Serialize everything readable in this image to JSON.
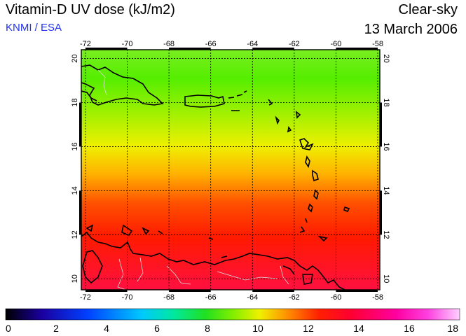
{
  "header": {
    "title": "Vitamin-D UV dose (kJ/m2)",
    "credit": "KNMI / ESA",
    "condition": "Clear-sky",
    "date": "13 March 2006"
  },
  "map": {
    "lon_ticks": [
      "-72",
      "-70",
      "-68",
      "-66",
      "-64",
      "-62",
      "-60",
      "-58"
    ],
    "lat_ticks": [
      "10",
      "12",
      "14",
      "16",
      "18",
      "20"
    ],
    "lon_range": [
      -72.2,
      -57.9
    ],
    "lat_range": [
      9.5,
      20.4
    ],
    "colors": {
      "north": "#55ee00",
      "mid": "#eef000",
      "south": "#ff1a00",
      "land_outline": "#000000",
      "grid": "#000000"
    }
  },
  "colorbar": {
    "range": [
      0,
      18
    ],
    "labels": [
      "0",
      "2",
      "4",
      "6",
      "8",
      "10",
      "12",
      "14",
      "16",
      "18"
    ],
    "stops": [
      "#000000",
      "#1a00a0",
      "#0040ff",
      "#00c8ff",
      "#00e8a0",
      "#20e020",
      "#80ee00",
      "#f0f000",
      "#ff9000",
      "#ff2000",
      "#ff0030",
      "#ff00a0",
      "#ff40e0",
      "#ffd0ff"
    ]
  }
}
